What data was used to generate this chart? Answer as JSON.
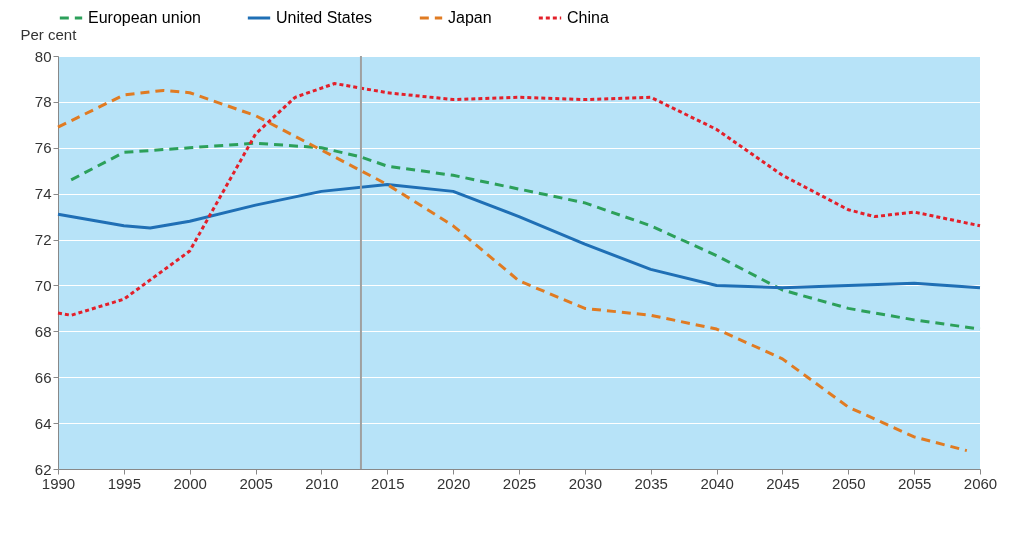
{
  "chart_data": {
    "type": "line",
    "ylabel": "Per cent",
    "legend": "top",
    "grid": "y",
    "xlim": [
      1990,
      2060
    ],
    "xticks": [
      1990,
      1995,
      2000,
      2005,
      2010,
      2015,
      2020,
      2025,
      2030,
      2035,
      2040,
      2045,
      2050,
      2055,
      2060
    ],
    "ylim": [
      62,
      80
    ],
    "yticks": [
      62,
      64,
      66,
      68,
      70,
      72,
      74,
      76,
      78,
      80
    ],
    "ref_lines": [
      {
        "axis": "x",
        "value": 2013,
        "color": "#a0a0a0"
      }
    ],
    "series": [
      {
        "name": "European union",
        "color": "#2ca05a",
        "line_style": "dashed",
        "x": [
          1991,
          1995,
          2000,
          2005,
          2010,
          2013,
          2015,
          2020,
          2025,
          2030,
          2035,
          2040,
          2045,
          2050,
          2055,
          2060
        ],
        "values": [
          74.6,
          75.8,
          76.0,
          76.2,
          76.0,
          75.6,
          75.2,
          74.8,
          74.2,
          73.6,
          72.6,
          71.3,
          69.8,
          69.0,
          68.5,
          68.1
        ]
      },
      {
        "name": "United States",
        "color": "#1f6fb5",
        "line_style": "solid",
        "x": [
          1990,
          1995,
          1997,
          2000,
          2005,
          2010,
          2015,
          2020,
          2025,
          2030,
          2035,
          2040,
          2045,
          2050,
          2055,
          2060
        ],
        "values": [
          73.1,
          72.6,
          72.5,
          72.8,
          73.5,
          74.1,
          74.4,
          74.1,
          73.0,
          71.8,
          70.7,
          70.0,
          69.9,
          70.0,
          70.1,
          69.9
        ]
      },
      {
        "name": "Japan",
        "color": "#e07b22",
        "line_style": "dashed",
        "x": [
          1990,
          1995,
          1998,
          2000,
          2005,
          2010,
          2015,
          2020,
          2025,
          2030,
          2035,
          2040,
          2045,
          2050,
          2055,
          2059
        ],
        "values": [
          76.9,
          78.3,
          78.5,
          78.4,
          77.4,
          75.9,
          74.4,
          72.6,
          70.2,
          69.0,
          68.7,
          68.1,
          66.8,
          64.7,
          63.4,
          62.8
        ]
      },
      {
        "name": "China",
        "color": "#e3202a",
        "line_style": "dotted",
        "x": [
          1990,
          1991,
          1995,
          2000,
          2005,
          2008,
          2011,
          2015,
          2020,
          2025,
          2030,
          2035,
          2040,
          2045,
          2050,
          2052,
          2055,
          2060
        ],
        "values": [
          68.8,
          68.7,
          69.4,
          71.5,
          76.6,
          78.2,
          78.8,
          78.4,
          78.1,
          78.2,
          78.1,
          78.2,
          76.8,
          74.8,
          73.3,
          73.0,
          73.2,
          72.6
        ]
      }
    ]
  }
}
